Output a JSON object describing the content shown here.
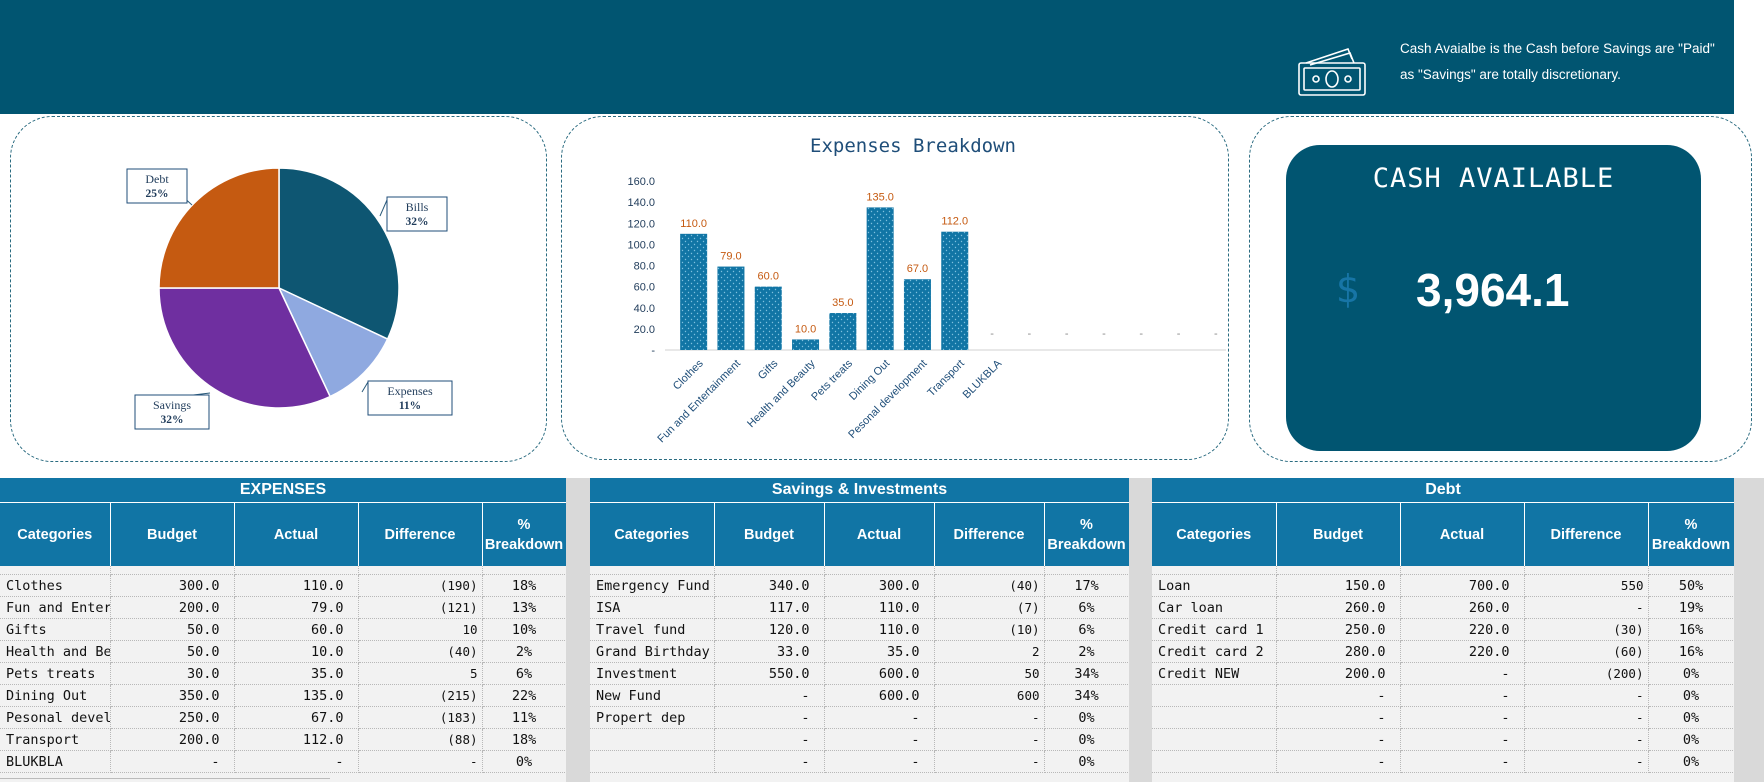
{
  "banner": {
    "note_line1": "Cash Avaialbe is the Cash before Savings are \"Paid\"",
    "note_line2": "as \"Savings\" are totally discretionary.",
    "icon": "cash-money-icon",
    "color": "#015571"
  },
  "pie": {
    "labels": [
      {
        "name": "Debt",
        "pct": "25%"
      },
      {
        "name": "Bills",
        "pct": "32%"
      },
      {
        "name": "Expenses",
        "pct": "11%"
      },
      {
        "name": "Savings",
        "pct": "32%"
      }
    ]
  },
  "chart_data": [
    {
      "type": "pie",
      "categories": [
        "Bills",
        "Expenses",
        "Savings",
        "Debt"
      ],
      "values": [
        32,
        11,
        32,
        25
      ],
      "colors": [
        "#0e5672",
        "#8fa9e0",
        "#6f2fa0",
        "#c55a11"
      ]
    },
    {
      "type": "bar",
      "title": "Expenses Breakdown",
      "categories": [
        "Clothes",
        "Fun and Entertainment",
        "Gifts",
        "Health and Beauty",
        "Pets treats",
        "Dining Out",
        "Pesonal development",
        "Transport",
        "BLUKBLA",
        "",
        "",
        "",
        "",
        "",
        ""
      ],
      "values": [
        110.0,
        79.0,
        60.0,
        10.0,
        35.0,
        135.0,
        67.0,
        112.0,
        0,
        0,
        0,
        0,
        0,
        0,
        0
      ],
      "value_labels": [
        "110.0",
        "79.0",
        "60.0",
        "10.0",
        "35.0",
        "135.0",
        "67.0",
        "112.0",
        "-",
        "-",
        "-",
        "-",
        "-",
        "-",
        "-"
      ],
      "yticks": [
        "-",
        "20.0",
        "40.0",
        "60.0",
        "80.0",
        "100.0",
        "120.0",
        "140.0",
        "160.0"
      ],
      "ylim": [
        0,
        160
      ],
      "bar_color": "#1175a5",
      "label_color": "#c55a11",
      "grid": false
    }
  ],
  "cash": {
    "title": "CASH AVAILABLE",
    "symbol": "$",
    "value": "3,964.1"
  },
  "tables": {
    "expenses": {
      "title": "EXPENSES",
      "headers": [
        "Categories",
        "Budget",
        "Actual",
        "Difference",
        "%\nBreakdown"
      ],
      "rows": [
        [
          "Clothes",
          "300.0",
          "110.0",
          "(190)",
          "18%"
        ],
        [
          "Fun and Entert",
          "200.0",
          "79.0",
          "(121)",
          "13%"
        ],
        [
          "Gifts",
          "50.0",
          "60.0",
          "10",
          "10%"
        ],
        [
          "Health and Bea",
          "50.0",
          "10.0",
          "(40)",
          "2%"
        ],
        [
          "Pets treats",
          "30.0",
          "35.0",
          "5",
          "6%"
        ],
        [
          "Dining Out",
          "350.0",
          "135.0",
          "(215)",
          "22%"
        ],
        [
          "Pesonal develo",
          "250.0",
          "67.0",
          "(183)",
          "11%"
        ],
        [
          "Transport",
          "200.0",
          "112.0",
          "(88)",
          "18%"
        ],
        [
          "BLUKBLA",
          "-",
          "-",
          "-",
          "0%"
        ]
      ]
    },
    "savings": {
      "title": "Savings & Investments",
      "headers": [
        "Categories",
        "Budget",
        "Actual",
        "Difference",
        "%\nBreakdown"
      ],
      "rows": [
        [
          "Emergency Fund",
          "340.0",
          "300.0",
          "(40)",
          "17%"
        ],
        [
          "ISA",
          "117.0",
          "110.0",
          "(7)",
          "6%"
        ],
        [
          "Travel fund",
          "120.0",
          "110.0",
          "(10)",
          "6%"
        ],
        [
          "Grand Birthday",
          "33.0",
          "35.0",
          "2",
          "2%"
        ],
        [
          "Investment",
          "550.0",
          "600.0",
          "50",
          "34%"
        ],
        [
          "New Fund",
          "-",
          "600.0",
          "600",
          "34%"
        ],
        [
          "Propert dep",
          "-",
          "-",
          "-",
          "0%"
        ],
        [
          "",
          "-",
          "-",
          "-",
          "0%"
        ],
        [
          "",
          "-",
          "-",
          "-",
          "0%"
        ]
      ]
    },
    "debt": {
      "title": "Debt",
      "headers": [
        "Categories",
        "Budget",
        "Actual",
        "Difference",
        "%\nBreakdown"
      ],
      "rows": [
        [
          "Loan",
          "150.0",
          "700.0",
          "550",
          "50%"
        ],
        [
          "Car loan",
          "260.0",
          "260.0",
          "-",
          "19%"
        ],
        [
          "Credit card 1",
          "250.0",
          "220.0",
          "(30)",
          "16%"
        ],
        [
          "Credit card 2",
          "280.0",
          "220.0",
          "(60)",
          "16%"
        ],
        [
          "Credit NEW",
          "200.0",
          "-",
          "(200)",
          "0%"
        ],
        [
          "",
          "-",
          "-",
          "-",
          "0%"
        ],
        [
          "",
          "-",
          "-",
          "-",
          "0%"
        ],
        [
          "",
          "-",
          "-",
          "-",
          "0%"
        ],
        [
          "",
          "-",
          "-",
          "-",
          "0%"
        ]
      ]
    }
  }
}
